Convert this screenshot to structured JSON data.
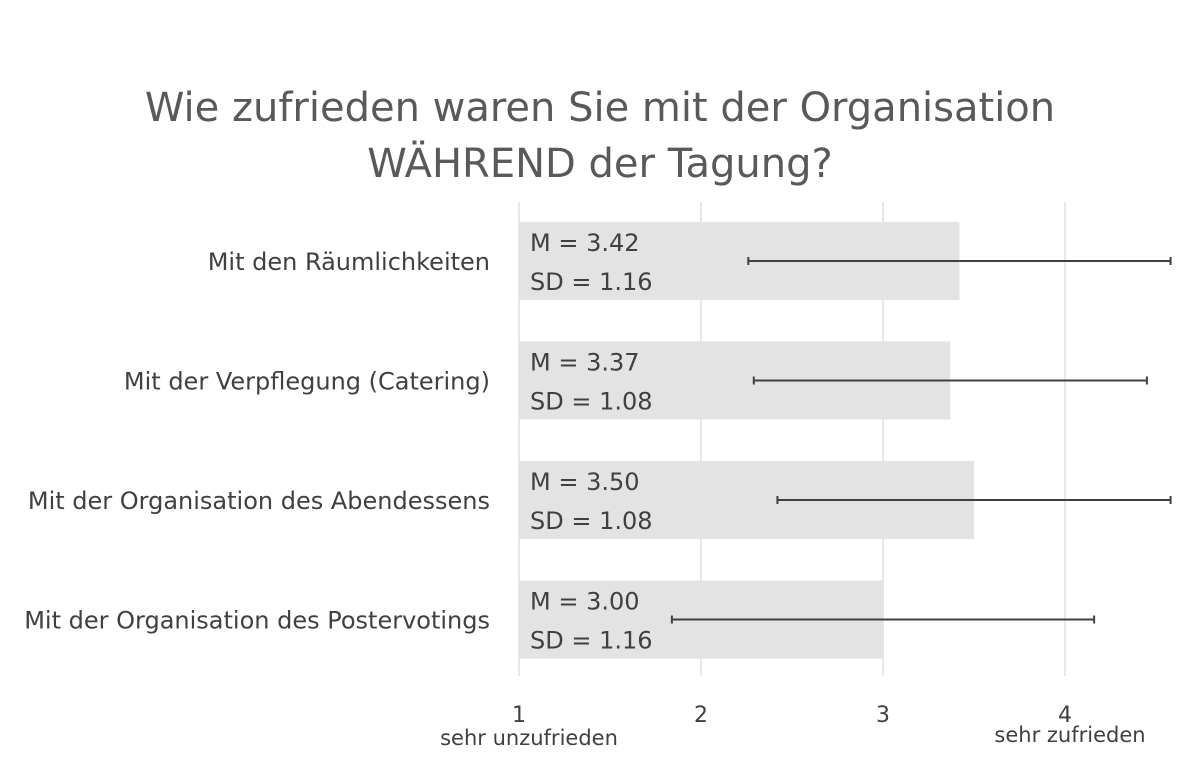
{
  "chart_data": {
    "type": "bar",
    "orientation": "horizontal",
    "title_lines": [
      "Wie zufrieden waren Sie mit der Organisation",
      "WÄHREND der Tagung?"
    ],
    "categories": [
      "Mit den Räumlichkeiten",
      "Mit der Verpflegung (Catering)",
      "Mit der Organisation des Abendessens",
      "Mit der Organisation des Postervotings"
    ],
    "values": [
      3.42,
      3.37,
      3.5,
      3.0
    ],
    "sd": [
      1.16,
      1.08,
      1.08,
      1.16
    ],
    "data_labels": [
      [
        "M = 3.42",
        "SD = 1.16"
      ],
      [
        "M = 3.37",
        "SD = 1.08"
      ],
      [
        "M = 3.50",
        "SD = 1.08"
      ],
      [
        " M = 3.00",
        "SD = 1.16"
      ]
    ],
    "x_ticks": [
      "1",
      "2",
      "3",
      "4"
    ],
    "x_tick_values": [
      1,
      2,
      3,
      4
    ],
    "x_min_label": "sehr unzufrieden",
    "x_max_label": "sehr zufrieden",
    "xlim": [
      1,
      4.6
    ],
    "grid": true,
    "colors": {
      "bar": "#e3e3e3",
      "error": "#404040",
      "grid": "#d9d9d9",
      "text": "#404040"
    }
  }
}
